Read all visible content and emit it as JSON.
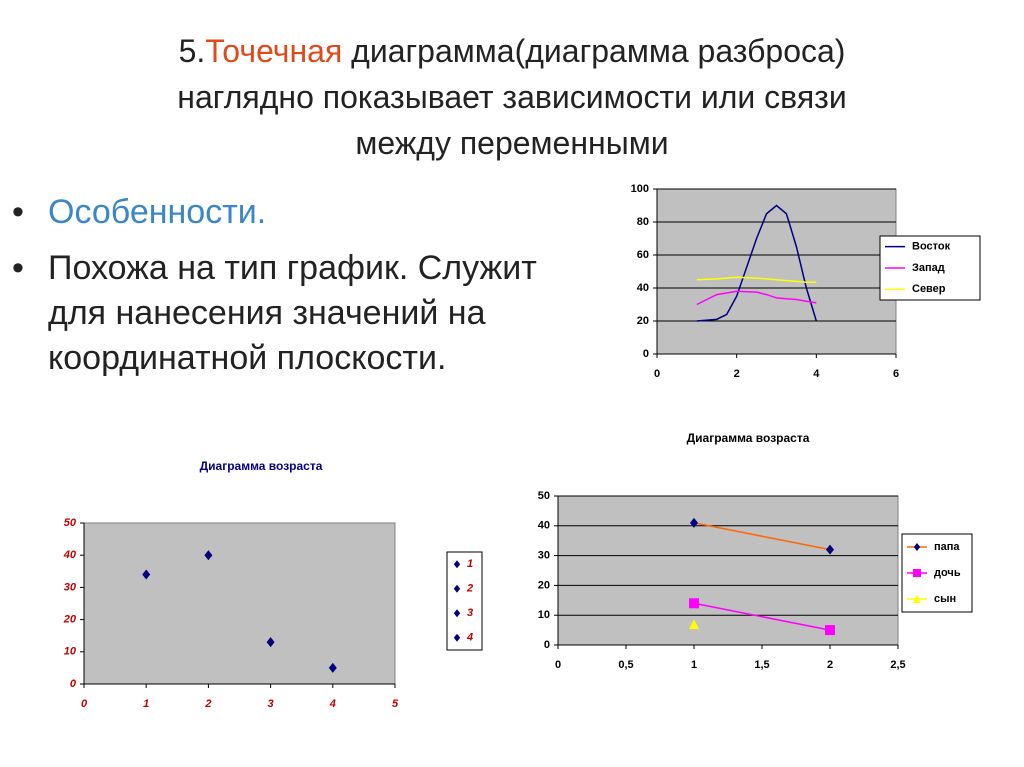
{
  "title": {
    "number": "5.",
    "highlight": "Точечная",
    "lines": [
      "диаграмма(диаграмма разброса)",
      "наглядно показывает зависимости или связи",
      "между переменными"
    ]
  },
  "bullets": [
    "Особенности.",
    "Похожа на тип график. Служит для нанесения значений на координатной плоскости."
  ],
  "chart_data": [
    {
      "type": "line",
      "x": [
        1,
        1.5,
        1.75,
        2,
        2.5,
        2.75,
        3,
        3.25,
        3.5,
        3.75,
        4
      ],
      "series": [
        {
          "name": "Восток",
          "color": "#000080",
          "values": [
            20,
            21,
            24,
            35,
            70,
            85,
            90,
            85,
            65,
            40,
            20
          ]
        },
        {
          "name": "Запад",
          "color": "#ff00ff",
          "values": [
            30,
            36,
            37,
            38,
            37.5,
            36,
            34,
            33.5,
            33,
            32,
            31
          ]
        },
        {
          "name": "Север",
          "color": "#ffff00",
          "values": [
            45,
            45.5,
            46,
            46.5,
            46,
            45.5,
            45,
            44.5,
            44,
            43.5,
            43.5
          ]
        }
      ],
      "xlim": [
        0,
        6
      ],
      "xticks": [
        0,
        2,
        4,
        6
      ],
      "ylim": [
        0,
        100
      ],
      "yticks": [
        0,
        20,
        40,
        60,
        80,
        100
      ],
      "grid": true,
      "tick_color": "#000000"
    },
    {
      "type": "scatter",
      "title": "Диаграмма возраста",
      "title_color": "#000080",
      "tick_color": "#c00000",
      "series": [
        {
          "name": "1",
          "color": "#000080",
          "marker": "diamond",
          "x": [
            1
          ],
          "values": [
            34
          ]
        },
        {
          "name": "2",
          "color": "#000080",
          "marker": "diamond",
          "x": [
            2
          ],
          "values": [
            40
          ]
        },
        {
          "name": "3",
          "color": "#000080",
          "marker": "diamond",
          "x": [
            3
          ],
          "values": [
            13
          ]
        },
        {
          "name": "4",
          "color": "#000080",
          "marker": "diamond",
          "x": [
            4
          ],
          "values": [
            5
          ]
        }
      ],
      "xlim": [
        0,
        5
      ],
      "xticks": [
        0,
        1,
        2,
        3,
        4,
        5
      ],
      "ylim": [
        0,
        50
      ],
      "yticks": [
        0,
        10,
        20,
        30,
        40,
        50
      ],
      "grid": false
    },
    {
      "type": "scatter",
      "title": "Диаграмма возраста",
      "title_color": "#000000",
      "tick_color": "#000000",
      "x": [
        1,
        2
      ],
      "series": [
        {
          "name": "папа",
          "color": "#000080",
          "line_color": "#ff6600",
          "marker": "diamond",
          "values": [
            41,
            32
          ]
        },
        {
          "name": "дочь",
          "color": "#ff00ff",
          "line_color": "#ff00ff",
          "marker": "square",
          "values": [
            14,
            5
          ]
        },
        {
          "name": "сын",
          "color": "#ffff00",
          "line_color": "#ffff00",
          "marker": "triangle",
          "values": [
            7,
            null
          ]
        }
      ],
      "xlim": [
        0,
        2.5
      ],
      "xticks": [
        0,
        {
          "value": 0.5,
          "label": "0,5"
        },
        1,
        {
          "value": 1.5,
          "label": "1,5"
        },
        2,
        {
          "value": 2.5,
          "label": "2,5"
        }
      ],
      "ylim": [
        0,
        50
      ],
      "yticks": [
        0,
        10,
        20,
        30,
        40,
        50
      ],
      "grid": true
    }
  ]
}
